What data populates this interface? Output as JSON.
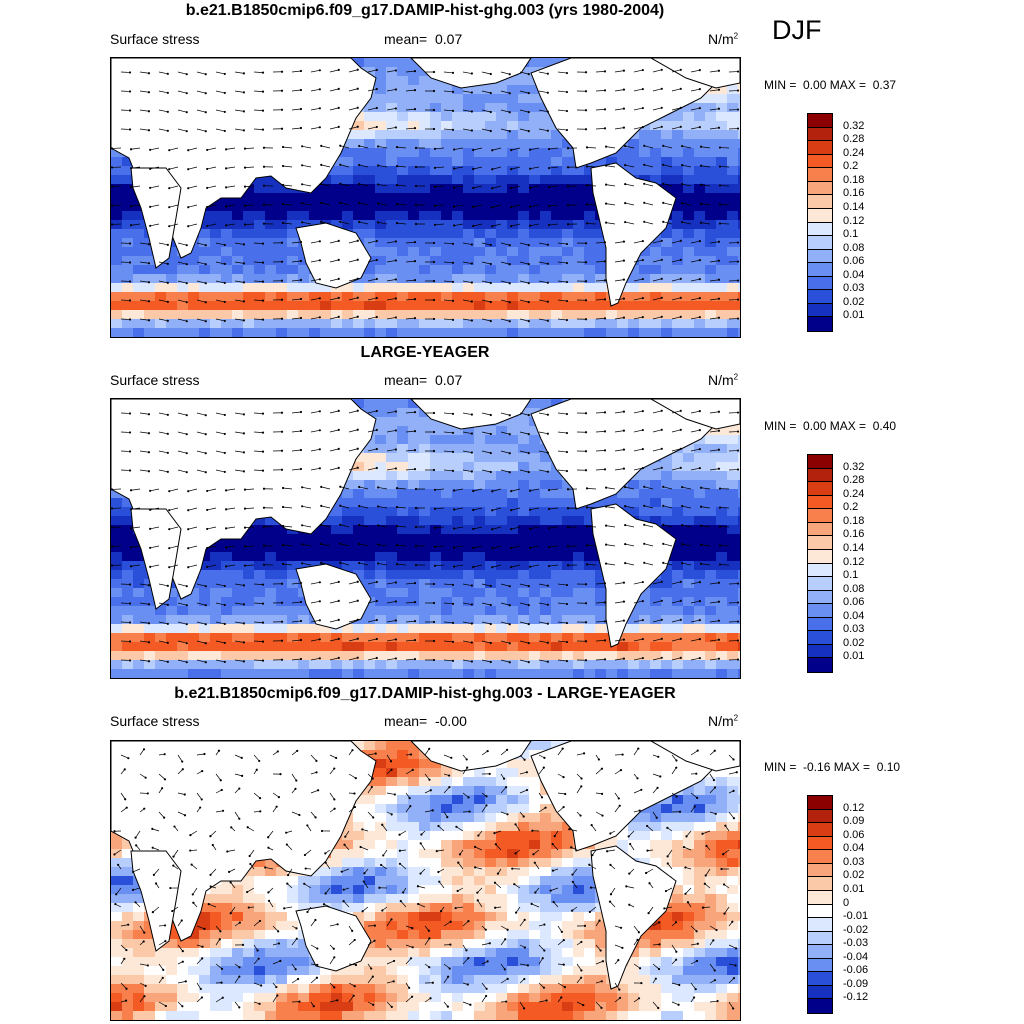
{
  "season": "DJF",
  "panels": [
    {
      "title": "b.e21.B1850cmip6.f09_g17.DAMIP-hist-ghg.003 (yrs 1980-2004)",
      "left_label": "Surface stress",
      "mean_label": "mean=",
      "mean_value": "0.07",
      "units": "N/m",
      "units_sup": "2",
      "min_label": "MIN =",
      "min_value": "0.00",
      "max_label": "MAX =",
      "max_value": "0.37",
      "colorbar_labels": [
        "0.32",
        "0.28",
        "0.24",
        "0.2",
        "0.18",
        "0.16",
        "0.14",
        "0.12",
        "0.1",
        "0.08",
        "0.06",
        "0.04",
        "0.03",
        "0.02",
        "0.01"
      ],
      "colorbar_colors": [
        "#8b0000",
        "#b3220c",
        "#d93d14",
        "#f45a24",
        "#f7804c",
        "#f9a57b",
        "#fbc8a8",
        "#fde8d8",
        "#dbe8ff",
        "#b8cefc",
        "#91b0f8",
        "#6a8ff2",
        "#4a6fea",
        "#2a4fd9",
        "#1631c0",
        "#00008b"
      ]
    },
    {
      "title": "LARGE-YEAGER",
      "left_label": "Surface stress",
      "mean_label": "mean=",
      "mean_value": "0.07",
      "units": "N/m",
      "units_sup": "2",
      "min_label": "MIN =",
      "min_value": "0.00",
      "max_label": "MAX =",
      "max_value": "0.40",
      "colorbar_labels": [
        "0.32",
        "0.28",
        "0.24",
        "0.2",
        "0.18",
        "0.16",
        "0.14",
        "0.12",
        "0.1",
        "0.08",
        "0.06",
        "0.04",
        "0.03",
        "0.02",
        "0.01"
      ],
      "colorbar_colors": [
        "#8b0000",
        "#b3220c",
        "#d93d14",
        "#f45a24",
        "#f7804c",
        "#f9a57b",
        "#fbc8a8",
        "#fde8d8",
        "#dbe8ff",
        "#b8cefc",
        "#91b0f8",
        "#6a8ff2",
        "#4a6fea",
        "#2a4fd9",
        "#1631c0",
        "#00008b"
      ]
    },
    {
      "title": "b.e21.B1850cmip6.f09_g17.DAMIP-hist-ghg.003 - LARGE-YEAGER",
      "left_label": "Surface stress",
      "mean_label": "mean=",
      "mean_value": "-0.00",
      "units": "N/m",
      "units_sup": "2",
      "min_label": "MIN =",
      "min_value": "-0.16",
      "max_label": "MAX =",
      "max_value": "0.10",
      "colorbar_labels": [
        "0.12",
        "0.09",
        "0.06",
        "0.04",
        "0.03",
        "0.02",
        "0.01",
        "0",
        "-0.01",
        "-0.02",
        "-0.03",
        "-0.04",
        "-0.06",
        "-0.09",
        "-0.12"
      ],
      "colorbar_colors": [
        "#8b0000",
        "#b3220c",
        "#d93d14",
        "#f45a24",
        "#f7804c",
        "#f9a57b",
        "#fbc8a8",
        "#fde8d8",
        "#ffffff",
        "#dbe8ff",
        "#b8cefc",
        "#91b0f8",
        "#6a8ff2",
        "#2a4fd9",
        "#1631c0",
        "#00008b"
      ]
    }
  ],
  "chart_data": [
    {
      "type": "heatmap",
      "title": "b.e21.B1850cmip6.f09_g17.DAMIP-hist-ghg.003 (yrs 1980-2004)",
      "variable": "Surface stress",
      "mean": 0.07,
      "min": 0.0,
      "max": 0.37,
      "units": "N/m2",
      "levels": [
        0.01,
        0.02,
        0.03,
        0.04,
        0.06,
        0.08,
        0.1,
        0.12,
        0.14,
        0.16,
        0.18,
        0.2,
        0.24,
        0.28,
        0.32
      ]
    },
    {
      "type": "heatmap",
      "title": "LARGE-YEAGER",
      "variable": "Surface stress",
      "mean": 0.07,
      "min": 0.0,
      "max": 0.4,
      "units": "N/m2",
      "levels": [
        0.01,
        0.02,
        0.03,
        0.04,
        0.06,
        0.08,
        0.1,
        0.12,
        0.14,
        0.16,
        0.18,
        0.2,
        0.24,
        0.28,
        0.32
      ]
    },
    {
      "type": "heatmap",
      "title": "b.e21.B1850cmip6.f09_g17.DAMIP-hist-ghg.003 - LARGE-YEAGER",
      "variable": "Surface stress",
      "mean": -0.0,
      "min": -0.16,
      "max": 0.1,
      "units": "N/m2",
      "levels": [
        -0.12,
        -0.09,
        -0.06,
        -0.04,
        -0.03,
        -0.02,
        -0.01,
        0,
        0.01,
        0.02,
        0.03,
        0.04,
        0.06,
        0.09,
        0.12
      ]
    }
  ]
}
